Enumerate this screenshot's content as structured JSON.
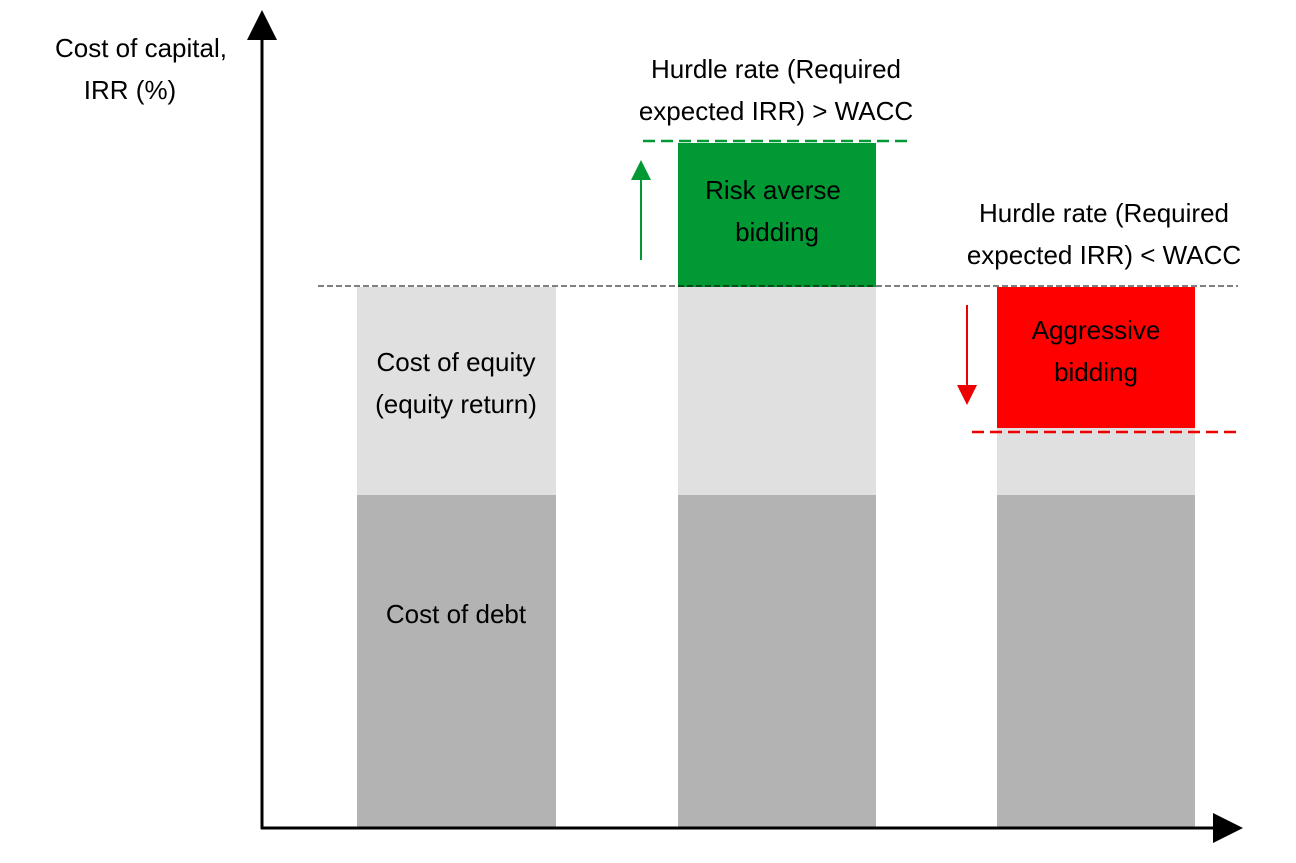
{
  "y_axis_label": [
    "Cost of capital,",
    "IRR (%)"
  ],
  "bars": [
    {
      "segments": [
        {
          "label": [
            "Cost of debt"
          ]
        },
        {
          "label": [
            "Cost of equity",
            "(equity return)"
          ]
        }
      ]
    },
    {
      "segments": [
        {
          "label": []
        },
        {
          "label": []
        },
        {
          "label": [
            "Risk averse",
            "bidding"
          ]
        }
      ],
      "annotation": [
        "Hurdle rate (Required",
        "expected IRR) > WACC"
      ]
    },
    {
      "segments": [
        {
          "label": []
        },
        {
          "label": []
        },
        {
          "label": [
            "Aggressive",
            "bidding"
          ]
        }
      ],
      "annotation": [
        "Hurdle rate (Required",
        "expected IRR) < WACC"
      ]
    }
  ]
}
